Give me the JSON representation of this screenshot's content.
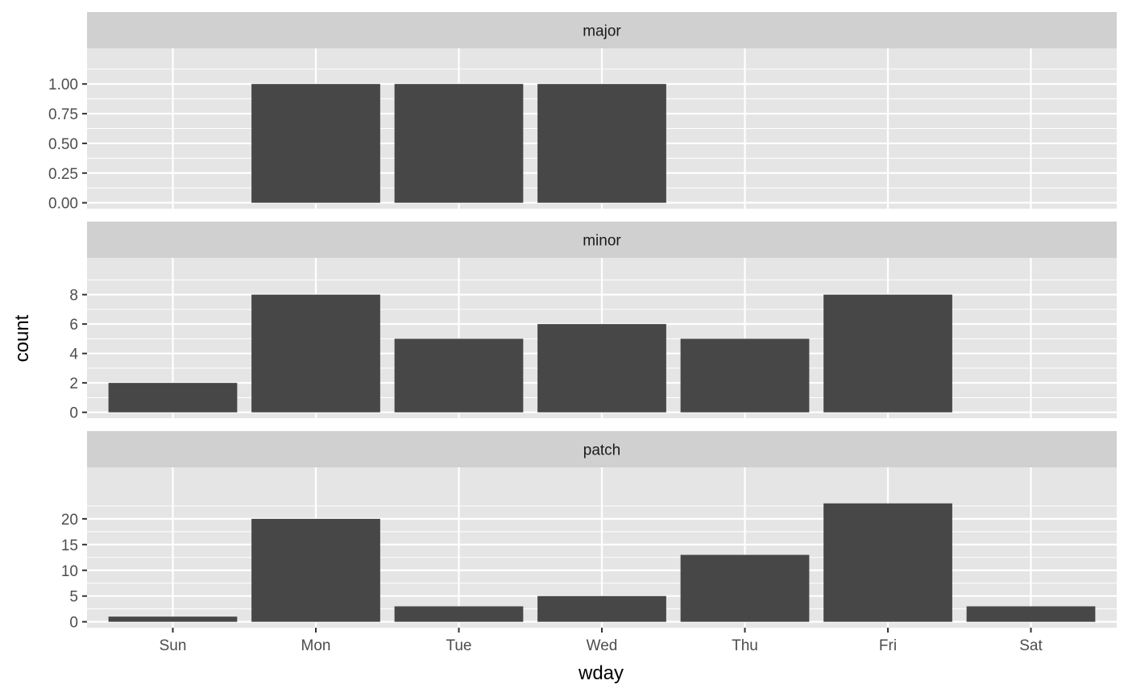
{
  "chart_data": {
    "type": "bar",
    "xlabel": "wday",
    "ylabel": "count",
    "categories": [
      "Sun",
      "Mon",
      "Tue",
      "Wed",
      "Thu",
      "Fri",
      "Sat"
    ],
    "facets": [
      {
        "name": "major",
        "values": [
          0,
          1,
          1,
          1,
          0,
          0,
          0
        ],
        "ylim": [
          -0.05,
          1.3
        ],
        "yticks": [
          0,
          0.25,
          0.5,
          0.75,
          1
        ],
        "ytick_labels": [
          "0.00",
          "0.25",
          "0.50",
          "0.75",
          "1.00"
        ]
      },
      {
        "name": "minor",
        "values": [
          2,
          8,
          5,
          6,
          5,
          8,
          0
        ],
        "ylim": [
          -0.4,
          10.5
        ],
        "yticks": [
          0,
          2,
          4,
          6,
          8
        ],
        "ytick_labels": [
          "0",
          "2",
          "4",
          "6",
          "8"
        ]
      },
      {
        "name": "patch",
        "values": [
          1,
          20,
          3,
          5,
          13,
          23,
          3
        ],
        "ylim": [
          -1.15,
          30
        ],
        "yticks": [
          0,
          5,
          10,
          15,
          20
        ],
        "ytick_labels": [
          "0",
          "5",
          "10",
          "15",
          "20"
        ]
      }
    ],
    "grid": true,
    "colors": {
      "bar": "#474747",
      "panel_background": "#e5e5e5",
      "strip_background": "#d0d0d0",
      "grid": "#ffffff"
    }
  }
}
